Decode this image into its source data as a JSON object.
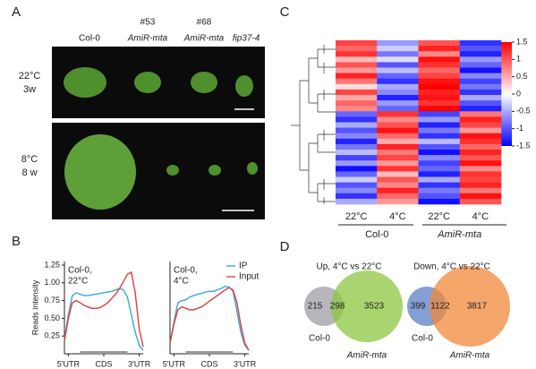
{
  "panel_labels": [
    "A",
    "B",
    "C",
    "D"
  ],
  "figure_a": {
    "columns": [
      {
        "top": null,
        "bottom": "Col-0"
      },
      {
        "top": "#53",
        "bottom": "AmiR-mta"
      },
      {
        "top": "#68",
        "bottom": "AmiR-mta"
      },
      {
        "top": null,
        "bottom": "fip37-4"
      }
    ],
    "rows": [
      [
        "22°C",
        "3w"
      ],
      [
        "8°C",
        "8 w"
      ]
    ]
  },
  "chart_data": [
    {
      "type": "line",
      "annotation": [
        "Col-0,",
        "22°C"
      ],
      "y_label": "Reads intensity",
      "x": [
        0,
        1,
        2,
        3,
        4,
        5,
        6,
        7,
        8,
        9,
        10,
        11,
        12,
        13,
        14,
        15,
        16,
        17,
        18,
        19,
        20
      ],
      "xlim": [
        0,
        20
      ],
      "ylim": [
        0,
        1.3
      ],
      "xticks": [
        {
          "value": 1,
          "label": "5'UTR"
        },
        {
          "value": 10,
          "label": "CDS"
        },
        {
          "value": 19,
          "label": "3'UTR"
        }
      ],
      "yticks": [
        {
          "value": 0.25,
          "label": "0.25"
        },
        {
          "value": 0.5,
          "label": "0.50"
        },
        {
          "value": 0.75,
          "label": "0.75"
        },
        {
          "value": 1,
          "label": "1.00"
        },
        {
          "value": 1.25,
          "label": "1.25"
        }
      ],
      "series": [
        {
          "color": "#3aa8d8",
          "values": [
            0.2,
            0.55,
            0.82,
            0.86,
            0.84,
            0.82,
            0.82,
            0.83,
            0.84,
            0.85,
            0.86,
            0.87,
            0.88,
            0.9,
            0.92,
            0.9,
            0.8,
            0.55,
            0.3,
            0.12,
            0.05
          ]
        },
        {
          "color": "#d9413c",
          "values": [
            0.18,
            0.5,
            0.72,
            0.75,
            0.72,
            0.68,
            0.66,
            0.64,
            0.64,
            0.65,
            0.68,
            0.72,
            0.78,
            0.84,
            0.92,
            1.02,
            1.12,
            1.15,
            0.85,
            0.35,
            0.1
          ]
        }
      ]
    },
    {
      "type": "line",
      "annotation": [
        "Col-0,",
        "4°C"
      ],
      "legend": "top-right",
      "x": [
        0,
        1,
        2,
        3,
        4,
        5,
        6,
        7,
        8,
        9,
        10,
        11,
        12,
        13,
        14,
        15,
        16,
        17,
        18,
        19,
        20
      ],
      "xlim": [
        0,
        20
      ],
      "ylim": [
        0,
        1.3
      ],
      "xticks": [
        {
          "value": 1,
          "label": "5'UTR"
        },
        {
          "value": 10,
          "label": "CDS"
        },
        {
          "value": 19,
          "label": "3'UTR"
        }
      ],
      "series": [
        {
          "name": "IP",
          "color": "#3aa8d8",
          "values": [
            0.15,
            0.45,
            0.72,
            0.75,
            0.76,
            0.8,
            0.82,
            0.84,
            0.85,
            0.87,
            0.88,
            0.88,
            0.9,
            0.92,
            0.95,
            0.94,
            0.88,
            0.6,
            0.3,
            0.12,
            0.05
          ]
        },
        {
          "name": "Input",
          "color": "#d9413c",
          "values": [
            0.15,
            0.42,
            0.62,
            0.66,
            0.64,
            0.62,
            0.62,
            0.64,
            0.66,
            0.7,
            0.74,
            0.78,
            0.82,
            0.86,
            0.9,
            0.93,
            0.9,
            0.72,
            0.4,
            0.15,
            0.05
          ]
        }
      ]
    },
    {
      "type": "heatmap",
      "columns": [
        "22°C",
        "4°C",
        "22°C",
        "4°C"
      ],
      "groups": [
        "Col-0",
        "AmiR-mta"
      ],
      "clim": [
        -1.5,
        1.5
      ],
      "cticks": [
        1.5,
        1,
        0.5,
        0,
        -0.5,
        -1,
        -1.5
      ],
      "rows": [
        [
          1.1,
          -0.6,
          1.0,
          -1.2
        ],
        [
          0.9,
          -0.3,
          1.3,
          -1.0
        ],
        [
          1.2,
          -0.8,
          0.7,
          -1.3
        ],
        [
          0.4,
          -0.2,
          1.4,
          -0.6
        ],
        [
          1.0,
          -1.0,
          1.2,
          -0.9
        ],
        [
          0.6,
          -0.4,
          0.9,
          -1.4
        ],
        [
          1.3,
          -0.9,
          1.1,
          -0.7
        ],
        [
          0.8,
          -1.2,
          1.4,
          -1.1
        ],
        [
          0.2,
          -0.5,
          1.5,
          -0.8
        ],
        [
          1.1,
          -0.7,
          1.3,
          -1.2
        ],
        [
          0.5,
          -1.3,
          1.4,
          -0.5
        ],
        [
          0.9,
          -0.6,
          1.2,
          -1.0
        ],
        [
          0.7,
          -0.9,
          1.5,
          -1.3
        ],
        [
          -0.9,
          1.2,
          -1.1,
          0.8
        ],
        [
          -1.2,
          0.7,
          -0.6,
          1.3
        ],
        [
          -0.5,
          1.0,
          -1.3,
          1.1
        ],
        [
          -1.0,
          1.4,
          -0.8,
          0.6
        ],
        [
          -0.7,
          0.9,
          -1.2,
          1.4
        ],
        [
          -1.3,
          0.5,
          -0.4,
          1.2
        ],
        [
          -0.8,
          1.3,
          -1.0,
          0.9
        ],
        [
          -0.4,
          0.8,
          -1.4,
          1.3
        ],
        [
          -1.1,
          1.1,
          -0.7,
          1.0
        ],
        [
          -0.6,
          0.6,
          -1.1,
          1.4
        ],
        [
          -1.4,
          1.2,
          -0.9,
          0.7
        ],
        [
          -0.9,
          0.4,
          -1.3,
          1.2
        ],
        [
          -0.3,
          1.0,
          -0.5,
          1.1
        ],
        [
          -1.0,
          0.7,
          -1.2,
          1.3
        ],
        [
          -0.7,
          1.3,
          -0.8,
          0.8
        ],
        [
          -1.2,
          0.9,
          -1.0,
          1.4
        ],
        [
          -0.5,
          0.6,
          -1.4,
          1.0
        ]
      ]
    },
    {
      "type": "venn",
      "title": "Up, 4°C vs 22°C",
      "sets": [
        "Col-0",
        "AmiR-mta"
      ],
      "colors": [
        "#9e9ea6",
        "#8cc63f"
      ],
      "values": [
        215,
        298,
        3523
      ]
    },
    {
      "type": "venn",
      "title": "Down, 4°C vs 22°C",
      "sets": [
        "Col-0",
        "AmiR-mta"
      ],
      "colors": [
        "#5b7fc4",
        "#f0883a"
      ],
      "values": [
        399,
        1122,
        3817
      ]
    }
  ]
}
